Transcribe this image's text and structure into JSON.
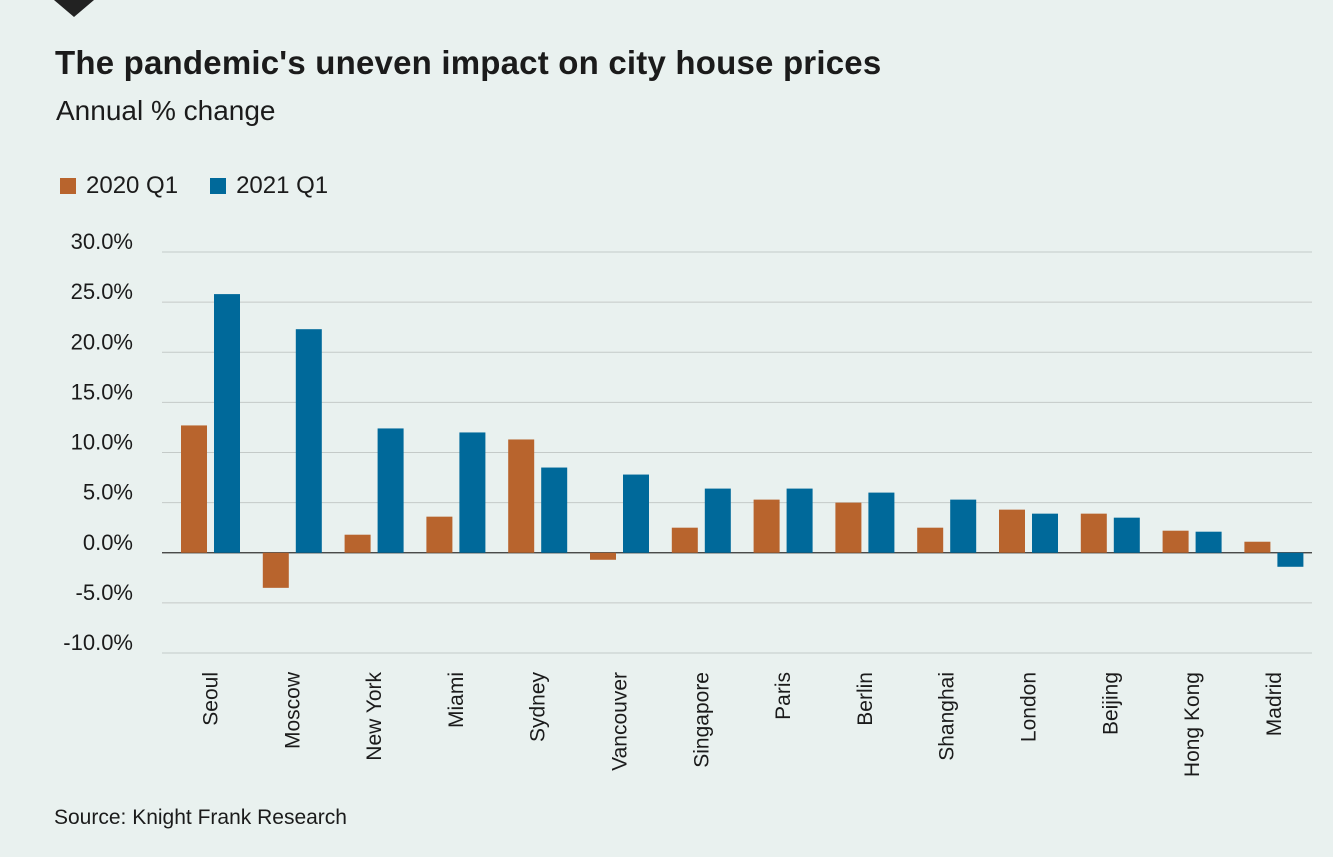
{
  "colors": {
    "background": "#e9f1ef",
    "series_2020": "#b8642d",
    "series_2021": "#00699a",
    "grid": "#c4cac8",
    "zero_line": "#333333"
  },
  "chart_data": {
    "type": "bar",
    "title": "The pandemic's uneven impact on city house prices",
    "subtitle": "Annual % change",
    "source": "Source: Knight Frank Research",
    "categories": [
      "Seoul",
      "Moscow",
      "New York",
      "Miami",
      "Sydney",
      "Vancouver",
      "Singapore",
      "Paris",
      "Berlin",
      "Shanghai",
      "London",
      "Beijing",
      "Hong Kong",
      "Madrid"
    ],
    "series": [
      {
        "name": "2020 Q1",
        "color": "#b8642d",
        "values": [
          12.7,
          -3.5,
          1.8,
          3.6,
          11.3,
          -0.7,
          2.5,
          5.3,
          5.0,
          2.5,
          4.3,
          3.9,
          2.2,
          1.1
        ]
      },
      {
        "name": "2021 Q1",
        "color": "#00699a",
        "values": [
          25.8,
          22.3,
          12.4,
          12.0,
          8.5,
          7.8,
          6.4,
          6.4,
          6.0,
          5.3,
          3.9,
          3.5,
          2.1,
          -1.4
        ]
      }
    ],
    "yticks": [
      "30.0%",
      "25.0%",
      "20.0%",
      "15.0%",
      "10.0%",
      "5.0%",
      "0.0%",
      "-5.0%",
      "-10.0%"
    ],
    "ylim": [
      -10,
      30
    ],
    "grid": true,
    "legend_position": "top-left"
  }
}
